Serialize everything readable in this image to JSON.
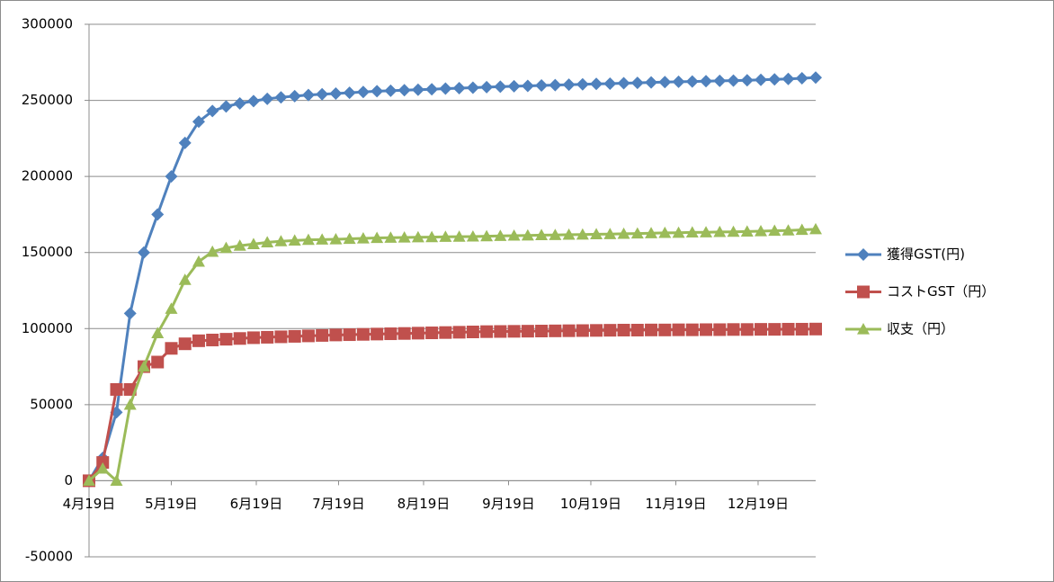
{
  "chart_data": {
    "type": "line",
    "x": [
      0,
      5,
      10,
      15,
      20,
      25,
      30,
      35,
      40,
      45,
      50,
      55,
      60,
      65,
      70,
      75,
      80,
      85,
      90,
      95,
      100,
      105,
      110,
      115,
      120,
      125,
      130,
      135,
      140,
      145,
      150,
      155,
      160,
      165,
      170,
      175,
      180,
      185,
      190,
      195,
      200,
      205,
      210,
      215,
      220,
      225,
      230,
      235,
      240,
      245,
      250,
      255,
      260,
      265
    ],
    "xlim": [
      0,
      265
    ],
    "xticks": [
      {
        "value": 0,
        "label": "4月19日"
      },
      {
        "value": 30,
        "label": "5月19日"
      },
      {
        "value": 61,
        "label": "6月19日"
      },
      {
        "value": 91,
        "label": "7月19日"
      },
      {
        "value": 122,
        "label": "8月19日"
      },
      {
        "value": 153,
        "label": "9月19日"
      },
      {
        "value": 183,
        "label": "10月19日"
      },
      {
        "value": 214,
        "label": "11月19日"
      },
      {
        "value": 244,
        "label": "12月19日"
      }
    ],
    "ylim": [
      -50000,
      300000
    ],
    "yticks": [
      -50000,
      0,
      50000,
      100000,
      150000,
      200000,
      250000,
      300000
    ],
    "grid": true,
    "legend": "right",
    "series": [
      {
        "name": "獲得GST(円)",
        "color": "#4f81bd",
        "marker": "diamond",
        "values": [
          0,
          15000,
          45000,
          110000,
          150000,
          175000,
          200000,
          222000,
          236000,
          243000,
          246000,
          248000,
          249500,
          251000,
          252000,
          252800,
          253500,
          254000,
          254500,
          255000,
          255500,
          256000,
          256300,
          256700,
          257000,
          257300,
          257700,
          258000,
          258300,
          258700,
          259000,
          259300,
          259500,
          259800,
          260000,
          260300,
          260500,
          260800,
          261000,
          261300,
          261500,
          261800,
          262000,
          262200,
          262400,
          262600,
          262800,
          263000,
          263200,
          263500,
          263800,
          264100,
          264500,
          265000
        ]
      },
      {
        "name": "コストGST（円）",
        "color": "#c0504d",
        "marker": "square",
        "values": [
          0,
          12000,
          60000,
          60000,
          75000,
          78000,
          87000,
          90000,
          92000,
          92500,
          93000,
          93500,
          94000,
          94300,
          94600,
          94900,
          95200,
          95500,
          95800,
          96000,
          96200,
          96400,
          96600,
          96800,
          97000,
          97200,
          97400,
          97600,
          97800,
          98000,
          98100,
          98200,
          98300,
          98400,
          98500,
          98600,
          98700,
          98800,
          98900,
          99000,
          99000,
          99100,
          99100,
          99200,
          99200,
          99300,
          99300,
          99400,
          99400,
          99500,
          99500,
          99600,
          99600,
          99700
        ]
      },
      {
        "name": "収支（円）",
        "color": "#9bbb59",
        "marker": "triangle",
        "values": [
          0,
          8000,
          0,
          50000,
          75000,
          97000,
          113000,
          132000,
          144000,
          150500,
          153000,
          154500,
          155500,
          156700,
          157400,
          157900,
          158300,
          158500,
          158700,
          159000,
          159300,
          159600,
          159700,
          159900,
          160000,
          160100,
          160300,
          160400,
          160500,
          160700,
          160900,
          161100,
          161200,
          161400,
          161500,
          161700,
          161800,
          162000,
          162100,
          162300,
          162500,
          162700,
          162900,
          163000,
          163200,
          163300,
          163500,
          163600,
          163800,
          164000,
          164300,
          164500,
          164900,
          165300
        ]
      }
    ]
  }
}
